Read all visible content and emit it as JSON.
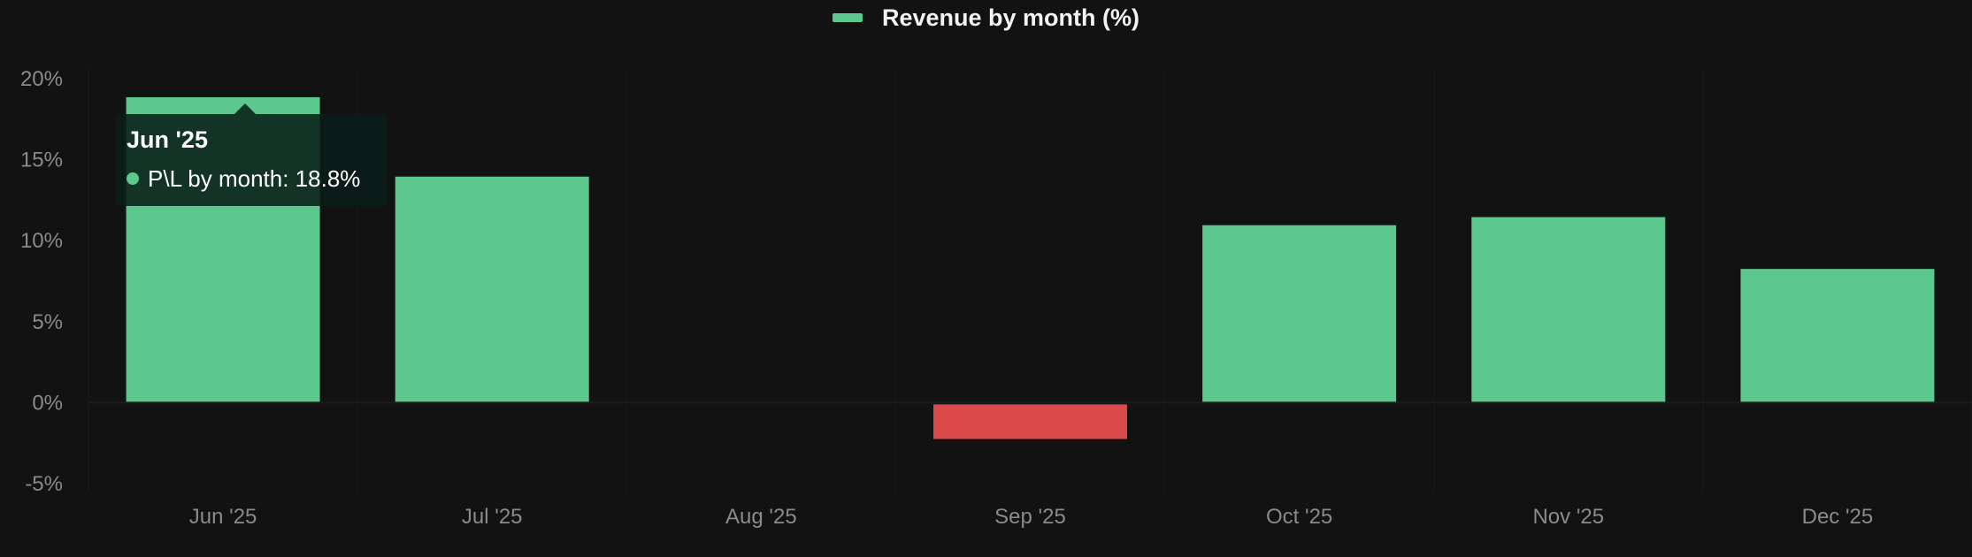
{
  "legend": {
    "label": "Revenue by month (%)",
    "color": "#5cc88e"
  },
  "tooltip": {
    "title": "Jun '25",
    "series_label": "P\\L by month: 18.8%",
    "dot_color": "#5cc88e"
  },
  "colors": {
    "positive": "#5cc88e",
    "negative": "#d94b4b",
    "background": "#121212",
    "tick_text": "#8a8a8a"
  },
  "chart_data": {
    "type": "bar",
    "categories": [
      "Jun '25",
      "Jul '25",
      "Aug '25",
      "Sep '25",
      "Oct '25",
      "Nov '25",
      "Dec '25"
    ],
    "series": [
      {
        "name": "Revenue by month (%)",
        "values": [
          18.8,
          13.9,
          0,
          -2.3,
          10.9,
          11.4,
          8.2
        ]
      }
    ],
    "y_ticks": [
      "20%",
      "15%",
      "10%",
      "5%",
      "0%",
      "-5%"
    ],
    "ylim": [
      -5,
      20
    ],
    "grid": true,
    "legend_position": "top-center"
  }
}
